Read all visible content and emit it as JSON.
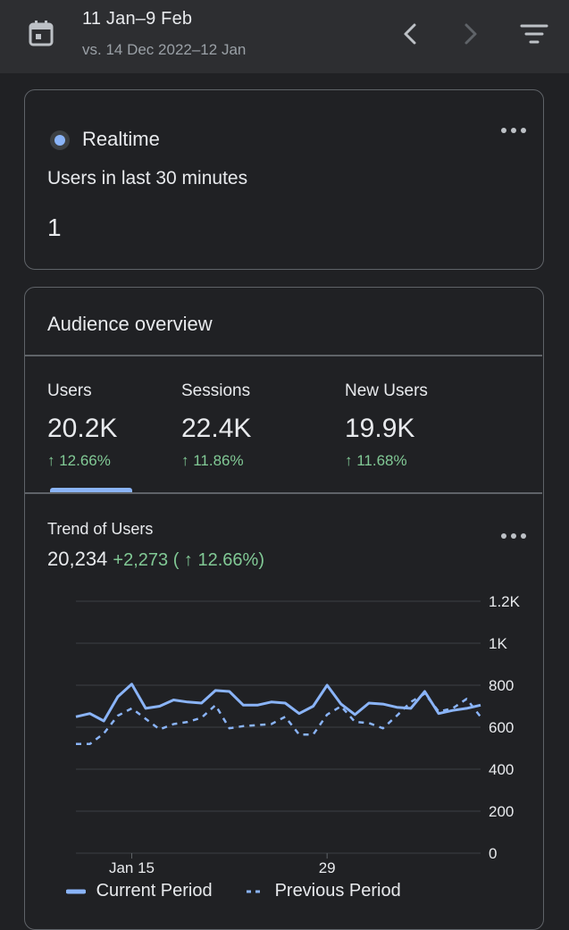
{
  "header": {
    "date_range": "11 Jan–9 Feb",
    "compare_range": "vs. 14 Dec 2022–12 Jan"
  },
  "realtime": {
    "label": "Realtime",
    "subtitle": "Users in last 30 minutes",
    "value": "1"
  },
  "audience": {
    "title": "Audience overview",
    "metrics": [
      {
        "label": "Users",
        "value": "20.2K",
        "change": "↑ 12.66%"
      },
      {
        "label": "Sessions",
        "value": "22.4K",
        "change": "↑ 11.86%"
      },
      {
        "label": "New Users",
        "value": "19.9K",
        "change": "↑ 11.68%"
      }
    ],
    "trend_title": "Trend of Users",
    "trend_total": "20,234",
    "trend_delta": "+2,273 ( ↑ 12.66%)"
  },
  "colors": {
    "accent": "#8ab4f8",
    "positive": "#81c995",
    "background": "#202124"
  },
  "chart_data": {
    "type": "line",
    "x_ticks": [
      "Jan 15",
      "29"
    ],
    "y_ticks": [
      "0",
      "200",
      "400",
      "600",
      "800",
      "1K",
      "1.2K"
    ],
    "ylim": [
      0,
      1200
    ],
    "grid": true,
    "legend_position": "bottom",
    "series": [
      {
        "name": "Current Period",
        "style": "solid",
        "values": [
          650,
          665,
          630,
          745,
          805,
          690,
          700,
          730,
          720,
          715,
          775,
          770,
          705,
          705,
          720,
          715,
          665,
          700,
          800,
          710,
          660,
          715,
          710,
          695,
          690,
          770,
          665,
          680,
          690,
          705
        ]
      },
      {
        "name": "Previous Period",
        "style": "dashed",
        "values": [
          520,
          520,
          570,
          655,
          690,
          640,
          590,
          615,
          625,
          645,
          705,
          595,
          605,
          610,
          615,
          650,
          565,
          565,
          660,
          700,
          625,
          620,
          595,
          655,
          720,
          760,
          675,
          690,
          735,
          650
        ]
      }
    ]
  }
}
